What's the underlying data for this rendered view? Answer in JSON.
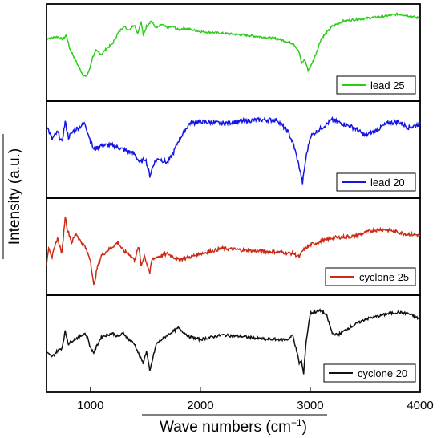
{
  "chart_data": {
    "type": "line",
    "xlabel": "Wave numbers (cm",
    "xlabel_sup": "−1",
    "xlabel_close": ")",
    "ylabel": "Intensity (a.u.)",
    "xlim": [
      600,
      4000
    ],
    "x_ticks": [
      "1000",
      "2000",
      "3000",
      "4000"
    ],
    "x_tick_values": [
      1000,
      2000,
      3000,
      4000
    ],
    "grid": false,
    "layout": "four vertically stacked panels sharing the x axis",
    "panels": [
      {
        "name": "lead 25",
        "color": "#2ecc1a",
        "noise": 0.012,
        "points": [
          [
            600,
            0.66
          ],
          [
            700,
            0.68
          ],
          [
            750,
            0.65
          ],
          [
            780,
            0.7
          ],
          [
            810,
            0.55
          ],
          [
            850,
            0.45
          ],
          [
            900,
            0.32
          ],
          [
            930,
            0.25
          ],
          [
            960,
            0.22
          ],
          [
            990,
            0.3
          ],
          [
            1020,
            0.45
          ],
          [
            1050,
            0.52
          ],
          [
            1100,
            0.48
          ],
          [
            1150,
            0.55
          ],
          [
            1200,
            0.6
          ],
          [
            1250,
            0.72
          ],
          [
            1300,
            0.8
          ],
          [
            1350,
            0.76
          ],
          [
            1400,
            0.82
          ],
          [
            1430,
            0.72
          ],
          [
            1460,
            0.85
          ],
          [
            1480,
            0.7
          ],
          [
            1510,
            0.8
          ],
          [
            1550,
            0.86
          ],
          [
            1600,
            0.78
          ],
          [
            1650,
            0.82
          ],
          [
            1700,
            0.78
          ],
          [
            1750,
            0.8
          ],
          [
            1800,
            0.76
          ],
          [
            1850,
            0.78
          ],
          [
            2000,
            0.74
          ],
          [
            2400,
            0.7
          ],
          [
            2700,
            0.66
          ],
          [
            2850,
            0.6
          ],
          [
            2900,
            0.5
          ],
          [
            2920,
            0.38
          ],
          [
            2950,
            0.42
          ],
          [
            2980,
            0.3
          ],
          [
            3000,
            0.33
          ],
          [
            3050,
            0.48
          ],
          [
            3100,
            0.66
          ],
          [
            3200,
            0.8
          ],
          [
            3300,
            0.86
          ],
          [
            3500,
            0.89
          ],
          [
            3700,
            0.92
          ],
          [
            3800,
            0.94
          ],
          [
            3900,
            0.92
          ],
          [
            4000,
            0.89
          ]
        ]
      },
      {
        "name": "lead 20",
        "color": "#1515e6",
        "noise": 0.025,
        "points": [
          [
            600,
            0.78
          ],
          [
            650,
            0.62
          ],
          [
            700,
            0.7
          ],
          [
            740,
            0.58
          ],
          [
            770,
            0.82
          ],
          [
            800,
            0.64
          ],
          [
            850,
            0.72
          ],
          [
            900,
            0.76
          ],
          [
            950,
            0.8
          ],
          [
            1000,
            0.6
          ],
          [
            1030,
            0.5
          ],
          [
            1100,
            0.55
          ],
          [
            1200,
            0.55
          ],
          [
            1300,
            0.5
          ],
          [
            1400,
            0.45
          ],
          [
            1450,
            0.35
          ],
          [
            1500,
            0.4
          ],
          [
            1540,
            0.2
          ],
          [
            1580,
            0.35
          ],
          [
            1620,
            0.4
          ],
          [
            1700,
            0.35
          ],
          [
            1750,
            0.45
          ],
          [
            1800,
            0.6
          ],
          [
            1900,
            0.8
          ],
          [
            2000,
            0.82
          ],
          [
            2200,
            0.8
          ],
          [
            2500,
            0.84
          ],
          [
            2700,
            0.84
          ],
          [
            2800,
            0.7
          ],
          [
            2850,
            0.55
          ],
          [
            2900,
            0.3
          ],
          [
            2930,
            0.12
          ],
          [
            2960,
            0.4
          ],
          [
            3000,
            0.65
          ],
          [
            3050,
            0.7
          ],
          [
            3200,
            0.84
          ],
          [
            3400,
            0.75
          ],
          [
            3500,
            0.66
          ],
          [
            3600,
            0.72
          ],
          [
            3700,
            0.8
          ],
          [
            3800,
            0.82
          ],
          [
            3900,
            0.75
          ],
          [
            4000,
            0.8
          ]
        ]
      },
      {
        "name": "cyclone 25",
        "color": "#cc2a15",
        "noise": 0.02,
        "points": [
          [
            600,
            0.3
          ],
          [
            620,
            0.5
          ],
          [
            650,
            0.38
          ],
          [
            700,
            0.6
          ],
          [
            740,
            0.42
          ],
          [
            770,
            0.85
          ],
          [
            790,
            0.7
          ],
          [
            830,
            0.55
          ],
          [
            870,
            0.65
          ],
          [
            900,
            0.58
          ],
          [
            950,
            0.5
          ],
          [
            1000,
            0.35
          ],
          [
            1030,
            0.05
          ],
          [
            1060,
            0.25
          ],
          [
            1100,
            0.4
          ],
          [
            1150,
            0.45
          ],
          [
            1200,
            0.5
          ],
          [
            1250,
            0.55
          ],
          [
            1300,
            0.45
          ],
          [
            1350,
            0.42
          ],
          [
            1400,
            0.35
          ],
          [
            1440,
            0.5
          ],
          [
            1460,
            0.28
          ],
          [
            1490,
            0.4
          ],
          [
            1540,
            0.2
          ],
          [
            1560,
            0.35
          ],
          [
            1600,
            0.38
          ],
          [
            1700,
            0.42
          ],
          [
            1800,
            0.35
          ],
          [
            1900,
            0.38
          ],
          [
            2000,
            0.42
          ],
          [
            2200,
            0.48
          ],
          [
            2500,
            0.45
          ],
          [
            2700,
            0.44
          ],
          [
            2850,
            0.42
          ],
          [
            2900,
            0.38
          ],
          [
            2930,
            0.45
          ],
          [
            3000,
            0.52
          ],
          [
            3200,
            0.6
          ],
          [
            3400,
            0.62
          ],
          [
            3550,
            0.68
          ],
          [
            3650,
            0.7
          ],
          [
            3750,
            0.68
          ],
          [
            3850,
            0.65
          ],
          [
            4000,
            0.63
          ]
        ]
      },
      {
        "name": "cyclone 20",
        "color": "#111111",
        "noise": 0.015,
        "points": [
          [
            600,
            0.4
          ],
          [
            650,
            0.35
          ],
          [
            700,
            0.42
          ],
          [
            740,
            0.45
          ],
          [
            770,
            0.64
          ],
          [
            800,
            0.5
          ],
          [
            850,
            0.55
          ],
          [
            900,
            0.58
          ],
          [
            950,
            0.62
          ],
          [
            980,
            0.55
          ],
          [
            1000,
            0.45
          ],
          [
            1030,
            0.4
          ],
          [
            1060,
            0.48
          ],
          [
            1100,
            0.58
          ],
          [
            1200,
            0.62
          ],
          [
            1250,
            0.58
          ],
          [
            1300,
            0.62
          ],
          [
            1350,
            0.55
          ],
          [
            1400,
            0.5
          ],
          [
            1450,
            0.35
          ],
          [
            1480,
            0.28
          ],
          [
            1510,
            0.42
          ],
          [
            1540,
            0.18
          ],
          [
            1570,
            0.35
          ],
          [
            1600,
            0.5
          ],
          [
            1650,
            0.55
          ],
          [
            1700,
            0.6
          ],
          [
            1800,
            0.68
          ],
          [
            1900,
            0.58
          ],
          [
            2000,
            0.55
          ],
          [
            2200,
            0.6
          ],
          [
            2400,
            0.58
          ],
          [
            2600,
            0.55
          ],
          [
            2800,
            0.55
          ],
          [
            2840,
            0.6
          ],
          [
            2870,
            0.45
          ],
          [
            2900,
            0.28
          ],
          [
            2920,
            0.3
          ],
          [
            2940,
            0.15
          ],
          [
            2960,
            0.5
          ],
          [
            3000,
            0.85
          ],
          [
            3100,
            0.88
          ],
          [
            3150,
            0.82
          ],
          [
            3200,
            0.62
          ],
          [
            3250,
            0.6
          ],
          [
            3350,
            0.68
          ],
          [
            3500,
            0.78
          ],
          [
            3700,
            0.84
          ],
          [
            3800,
            0.86
          ],
          [
            3900,
            0.84
          ],
          [
            4000,
            0.78
          ]
        ]
      }
    ]
  }
}
